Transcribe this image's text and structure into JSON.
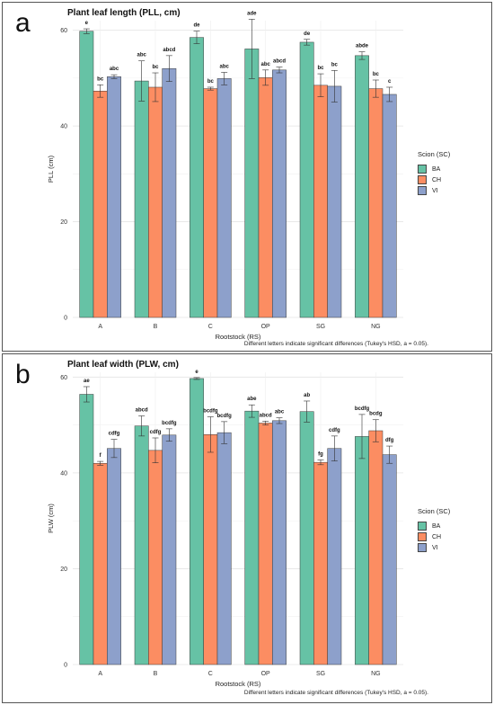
{
  "panels": [
    {
      "letter": "a",
      "footnote": "Different letters indicate significant differences (Tukey's HSD, a = 0.05).",
      "legend": {
        "title": "Scion (SC)",
        "items": [
          {
            "label": "BA",
            "color": "#66c2a5"
          },
          {
            "label": "CH",
            "color": "#fc8d62"
          },
          {
            "label": "VI",
            "color": "#8da0cb"
          }
        ]
      }
    },
    {
      "letter": "b",
      "footnote": "Different letters indicate significant differences (Tukey's HSD, a = 0.05).",
      "legend": {
        "title": "Scion (SC)",
        "items": [
          {
            "label": "BA",
            "color": "#66c2a5"
          },
          {
            "label": "CH",
            "color": "#fc8d62"
          },
          {
            "label": "VI",
            "color": "#8da0cb"
          }
        ]
      }
    }
  ],
  "chart_data": [
    {
      "type": "bar",
      "title": "Plant leaf length (PLL, cm)",
      "xlabel": "Rootstock (RS)",
      "ylabel": "PLL (cm)",
      "ylim": [
        0,
        62
      ],
      "yticks": [
        0,
        20,
        40,
        60
      ],
      "grid": true,
      "legend_position": "right",
      "categories": [
        "A",
        "B",
        "C",
        "OP",
        "SG",
        "NG"
      ],
      "series": [
        {
          "name": "BA",
          "color": "#66c2a5",
          "values": [
            59.8,
            49.4,
            58.5,
            56.1,
            57.5,
            54.7
          ],
          "errors": [
            0.5,
            4.2,
            1.3,
            6.2,
            0.6,
            0.8
          ],
          "labels": [
            "e",
            "abc",
            "de",
            "ade",
            "de",
            "abde"
          ]
        },
        {
          "name": "CH",
          "color": "#fc8d62",
          "values": [
            47.3,
            48.1,
            47.8,
            50.1,
            48.5,
            47.8
          ],
          "errors": [
            1.3,
            3.0,
            0.3,
            1.6,
            2.4,
            1.8
          ],
          "labels": [
            "bc",
            "bc",
            "bc",
            "abc",
            "bc",
            "bc"
          ]
        },
        {
          "name": "VI",
          "color": "#8da0cb",
          "values": [
            50.3,
            52.0,
            49.9,
            51.7,
            48.3,
            46.6
          ],
          "errors": [
            0.4,
            2.7,
            1.3,
            0.6,
            3.3,
            1.5
          ],
          "labels": [
            "abc",
            "abcd",
            "abc",
            "abcd",
            "bc",
            "c"
          ]
        }
      ]
    },
    {
      "type": "bar",
      "title": "Plant leaf width (PLW, cm)",
      "xlabel": "Rootstock (RS)",
      "ylabel": "PLW (cm)",
      "ylim": [
        0,
        61
      ],
      "yticks": [
        0,
        20,
        40,
        60
      ],
      "grid": true,
      "legend_position": "right",
      "categories": [
        "A",
        "B",
        "C",
        "OP",
        "SG",
        "NG"
      ],
      "series": [
        {
          "name": "BA",
          "color": "#66c2a5",
          "values": [
            56.4,
            49.8,
            59.7,
            52.9,
            52.8,
            47.6
          ],
          "errors": [
            1.6,
            2.1,
            0.2,
            1.3,
            2.2,
            4.6
          ],
          "labels": [
            "ae",
            "abcd",
            "e",
            "abe",
            "ab",
            "bcdfg"
          ]
        },
        {
          "name": "CH",
          "color": "#fc8d62",
          "values": [
            42.0,
            44.7,
            48.0,
            50.4,
            42.2,
            48.8
          ],
          "errors": [
            0.4,
            2.6,
            3.7,
            0.4,
            0.5,
            2.3
          ],
          "labels": [
            "f",
            "cdfg",
            "bcdfg",
            "abcd",
            "fg",
            "bcdg"
          ]
        },
        {
          "name": "VI",
          "color": "#8da0cb",
          "values": [
            45.1,
            47.9,
            48.4,
            50.9,
            45.1,
            43.8
          ],
          "errors": [
            1.9,
            1.3,
            2.3,
            0.6,
            2.6,
            1.8
          ],
          "labels": [
            "cdfg",
            "bcdfg",
            "bcdfg",
            "abc",
            "cdfg",
            "dfg"
          ]
        }
      ]
    }
  ]
}
